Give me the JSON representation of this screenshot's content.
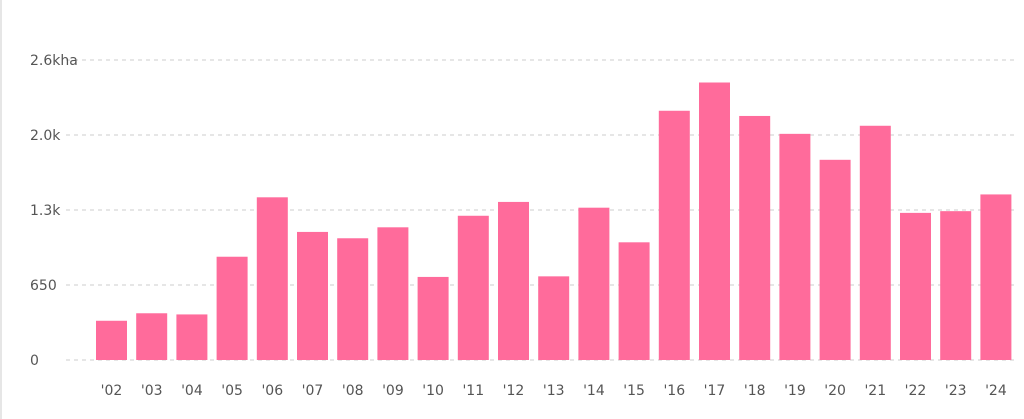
{
  "chart_data": {
    "type": "bar",
    "title": "",
    "xlabel": "",
    "ylabel": "",
    "y_unit_label": "2.6kha",
    "ylim": [
      0,
      2600
    ],
    "yticks": [
      {
        "value": 0,
        "label": "0"
      },
      {
        "value": 650,
        "label": "650"
      },
      {
        "value": 1300,
        "label": "1.3k"
      },
      {
        "value": 1950,
        "label": "2.0k"
      },
      {
        "value": 2600,
        "label": "2.6kha"
      }
    ],
    "grid": true,
    "bar_color": "#ff6b9b",
    "categories": [
      "'02",
      "'03",
      "'04",
      "'05",
      "'06",
      "'07",
      "'08",
      "'09",
      "'10",
      "'11",
      "'12",
      "'13",
      "'14",
      "'15",
      "'16",
      "'17",
      "'18",
      "'19",
      "'20",
      "'21",
      "'22",
      "'23",
      "'24"
    ],
    "values": [
      340,
      405,
      395,
      895,
      1410,
      1110,
      1055,
      1150,
      720,
      1250,
      1370,
      725,
      1320,
      1020,
      2160,
      2405,
      2115,
      1960,
      1735,
      2030,
      1275,
      1290,
      1435
    ]
  }
}
